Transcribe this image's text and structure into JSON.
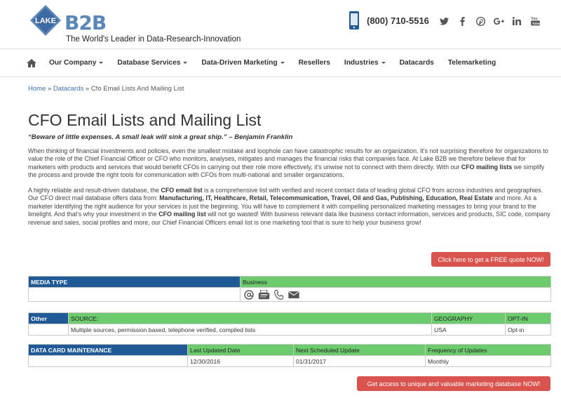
{
  "header": {
    "logo_text": "LAKE",
    "logo_b2b": "B2B",
    "tagline": "The World's Leader in Data-Research-Innovation",
    "phone": "(800) 710-5516",
    "social_icons": [
      "twitter-icon",
      "facebook-icon",
      "pinterest-icon",
      "google-plus-icon",
      "linkedin-icon",
      "youtube-icon"
    ]
  },
  "nav": {
    "items": [
      {
        "label": "Our Company",
        "dropdown": true
      },
      {
        "label": "Database Services",
        "dropdown": true
      },
      {
        "label": "Data-Driven Marketing",
        "dropdown": true
      },
      {
        "label": "Resellers",
        "dropdown": false
      },
      {
        "label": "Industries",
        "dropdown": true
      },
      {
        "label": "Datacards",
        "dropdown": false
      },
      {
        "label": "Telemarketing",
        "dropdown": false
      }
    ]
  },
  "breadcrumb": {
    "home": "Home",
    "sep": "»",
    "datacards": "Datacards",
    "current": "Cfo Email Lists And Mailing List"
  },
  "page": {
    "title": "CFO Email Lists and Mailing List",
    "quote": "“Beware of little expenses. A small leak will sink a great ship.” – Benjamin Franklin",
    "p1": {
      "a": "When thinking of financial investments and policies, even the smallest mistake and loophole can have catastrophic results for an organization. It's not surprising therefore for organizations to value the role of the Chief Financial Officer or CFO who monitors, analyses, mitigates and manages the financial risks that companies face. At Lake B2B we therefore believe that for marketers with products and services that would benefit CFOs in carrying out their role more effectively, it's unwise not to connect with them directly. With our ",
      "b1": "CFO mailing lists",
      "c": " we simplify the process and provide the right tools for communication with CFOs from multi-national and smaller organizations."
    },
    "p2": {
      "a": "A highly reliable and result-driven database, the ",
      "b1": "CFO email list",
      "c": " is a comprehensive list with verified and recent contact data of leading global CFO from across industries and geographies. Our CFO direct mail database offers data from: ",
      "b2": "Manufacturing, IT, Healthcare, Retail, Telecommunication, Travel, Oil and Gas, Publishing, Education, Real Estate",
      "d": " and more. As a marketer identifying the right audience for your services is just the beginning. You will have to complement it with compelling personalized marketing messages to bring your brand to the limelight. And that's why your investment in the ",
      "b3": "CFO mailing list",
      "e": " will not go wasted! With business relevant data like business contact information, services and products, SIC code, company revenue and sales, social profiles and more, our Chief Financial Officers email list is one marketing tool that is sure to help your business grow!"
    },
    "quote_button": "Click here to get a FREE quote NOW!",
    "access_button": "Get access to unique and valuable marketing database NOW!"
  },
  "media_table": {
    "header": "MEDIA TYPE",
    "type": "Business",
    "icons": [
      "at-sign-icon",
      "fax-icon",
      "phone-icon",
      "envelope-icon"
    ]
  },
  "source_table": {
    "other": "Other",
    "source_h": "SOURCE:",
    "geo_h": "GEOGRAPHY",
    "optin_h": "OPT-IN",
    "source": "Multiple sources, permission based, telephone verified, compiled lists",
    "geo": "USA",
    "optin": "Opt-in"
  },
  "maint_table": {
    "header": "DATA CARD MAINTENANCE",
    "last_h": "Last Updated Date",
    "next_h": "Next Scheduled Update",
    "freq_h": "Frequency of Updates",
    "last": "12/30/2016",
    "next": "01/31/2017",
    "freq": "Monthly"
  },
  "colors": {
    "brand_blue": "#1f5a96",
    "table_green": "#6ccb6c",
    "button_red": "#d9534f",
    "link_blue": "#3a73b6"
  }
}
